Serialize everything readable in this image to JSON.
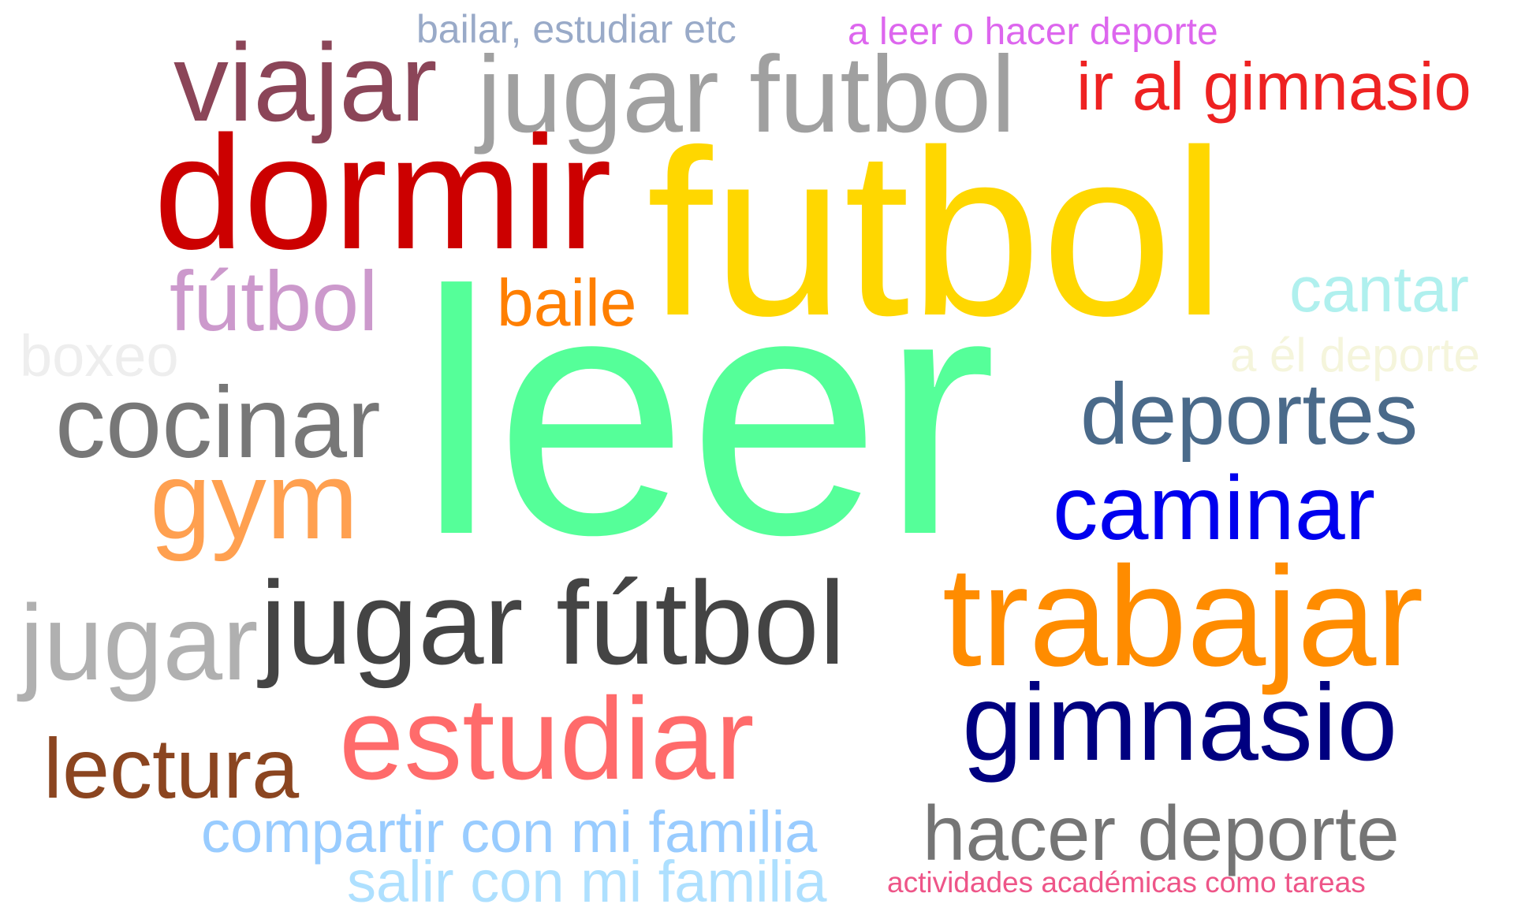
{
  "words": [
    {
      "id": "w-leer",
      "text": "leer",
      "color": "#55ff99"
    },
    {
      "id": "w-futbol",
      "text": "futbol",
      "color": "#ffd700"
    },
    {
      "id": "w-dormir",
      "text": "dormir",
      "color": "#cc0000"
    },
    {
      "id": "w-trabajar",
      "text": "trabajar",
      "color": "#ff8c00"
    },
    {
      "id": "w-jugar-futbol-tilde",
      "text": "jugar fútbol",
      "color": "#444444"
    },
    {
      "id": "w-jugar-futbol",
      "text": "jugar futbol",
      "color": "#a0a0a0"
    },
    {
      "id": "w-viajar",
      "text": "viajar",
      "color": "#8b4558"
    },
    {
      "id": "w-estudiar",
      "text": "estudiar",
      "color": "#ff6b6b"
    },
    {
      "id": "w-gimnasio",
      "text": "gimnasio",
      "color": "#000080"
    },
    {
      "id": "w-gym",
      "text": "gym",
      "color": "#ffa050"
    },
    {
      "id": "w-cocinar",
      "text": "cocinar",
      "color": "#777777"
    },
    {
      "id": "w-caminar",
      "text": "caminar",
      "color": "#0000ee"
    },
    {
      "id": "w-deportes",
      "text": "deportes",
      "color": "#4a6a8a"
    },
    {
      "id": "w-jugar",
      "text": "jugar",
      "color": "#b0b0b0"
    },
    {
      "id": "w-hacer-deporte",
      "text": "hacer deporte",
      "color": "#757575"
    },
    {
      "id": "w-lectura",
      "text": "lectura",
      "color": "#8b4520"
    },
    {
      "id": "w-futbol-tilde",
      "text": "fútbol",
      "color": "#cc99cc"
    },
    {
      "id": "w-ir-al-gimnasio",
      "text": "ir al gimnasio",
      "color": "#ee2222"
    },
    {
      "id": "w-compartir",
      "text": "compartir con mi familia",
      "color": "#99ccff"
    },
    {
      "id": "w-salir",
      "text": "salir con mi familia",
      "color": "#aee0ff"
    },
    {
      "id": "w-baile",
      "text": "baile",
      "color": "#ff7f00"
    },
    {
      "id": "w-cantar",
      "text": "cantar",
      "color": "#b0f0ee"
    },
    {
      "id": "w-boxeo",
      "text": "boxeo",
      "color": "#eeeeee"
    },
    {
      "id": "w-a-el-deporte",
      "text": "a él deporte",
      "color": "#f5f5dc"
    },
    {
      "id": "w-bailar",
      "text": "bailar, estudiar etc",
      "color": "#99aac8"
    },
    {
      "id": "w-a-leer",
      "text": "a leer o hacer deporte",
      "color": "#dd66ee"
    },
    {
      "id": "w-actividades",
      "text": "actividades académicas como tareas",
      "color": "#ee5588"
    }
  ]
}
